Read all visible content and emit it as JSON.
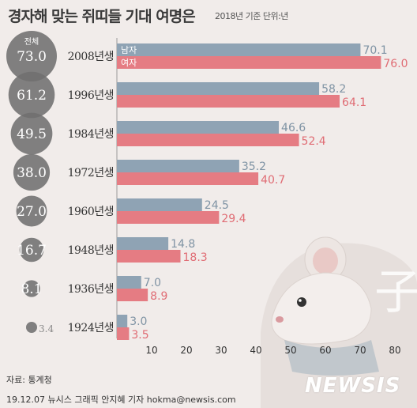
{
  "title": "경자해 맞는 쥐띠들 기대 여명은",
  "subtitle": "2018년 기준 단위:년",
  "source": "자료: 통계청",
  "credit": "19.12.07 뉴시스 그래픽 안지혜 기자 hokma@newsis.com",
  "watermark": "NEWSIS",
  "total_label": "전체",
  "colors": {
    "male": "#8fa3b4",
    "female": "#e57c83",
    "male_text": "#7f93a4",
    "female_text": "#e06c74",
    "bubble": "#6f6f6f",
    "background": "#f1ecea"
  },
  "chart_data": {
    "type": "bar",
    "orientation": "horizontal",
    "categories": [
      "2008년생",
      "1996년생",
      "1984년생",
      "1972년생",
      "1960년생",
      "1948년생",
      "1936년생",
      "1924년생"
    ],
    "series": [
      {
        "name": "남자",
        "values": [
          70.1,
          58.2,
          46.6,
          35.2,
          24.5,
          14.8,
          7.0,
          3.0
        ]
      },
      {
        "name": "여자",
        "values": [
          76.0,
          64.1,
          52.4,
          40.7,
          29.4,
          18.3,
          8.9,
          3.5
        ]
      }
    ],
    "total": [
      73.0,
      61.2,
      49.5,
      38.0,
      27.0,
      16.7,
      8.1,
      3.4
    ],
    "xlim": [
      0,
      80
    ],
    "xticks": [
      10,
      20,
      30,
      40,
      50,
      60,
      70,
      80
    ],
    "grid": false,
    "legend": "inside-top-bar"
  }
}
